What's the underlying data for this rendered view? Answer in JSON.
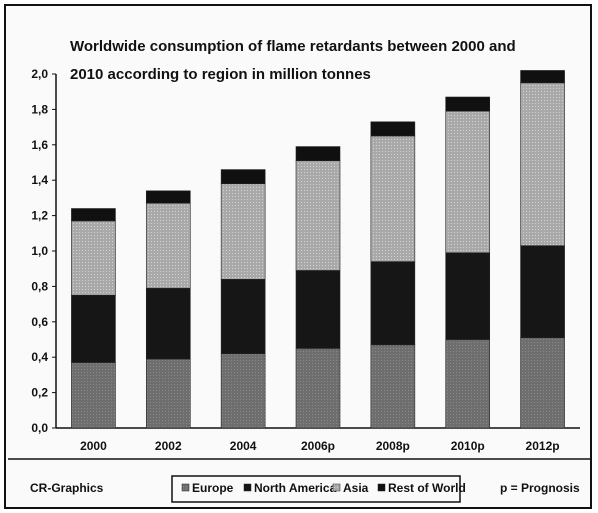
{
  "chart_data": {
    "type": "bar",
    "stacked": true,
    "title_lines": [
      "Worldwide consumption of flame retardants between 2000 and",
      "2010 according to region in million tonnes"
    ],
    "categories": [
      "2000",
      "2002",
      "2004",
      "2006p",
      "2008p",
      "2010p",
      "2012p"
    ],
    "series": [
      {
        "name": "Europe",
        "values": [
          0.37,
          0.39,
          0.42,
          0.45,
          0.47,
          0.5,
          0.51
        ]
      },
      {
        "name": "North America",
        "values": [
          0.38,
          0.4,
          0.42,
          0.44,
          0.47,
          0.49,
          0.52
        ]
      },
      {
        "name": "Asia",
        "values": [
          0.42,
          0.48,
          0.54,
          0.62,
          0.71,
          0.8,
          0.92
        ]
      },
      {
        "name": "Rest of World",
        "values": [
          0.07,
          0.07,
          0.08,
          0.08,
          0.08,
          0.08,
          0.07
        ]
      }
    ],
    "ylim": [
      0,
      2.0
    ],
    "yticks": [
      "0,0",
      "0,2",
      "0,4",
      "0,6",
      "0,8",
      "1,0",
      "1,2",
      "1,4",
      "1,6",
      "1,8",
      "2,0"
    ],
    "grid": false,
    "legend": "bottom",
    "series_colors": [
      "#6e6e6e",
      "#161616",
      "#a9a9a9",
      "#101010"
    ]
  },
  "footer": {
    "source": "CR-Graphics",
    "note": "p = Prognosis"
  }
}
